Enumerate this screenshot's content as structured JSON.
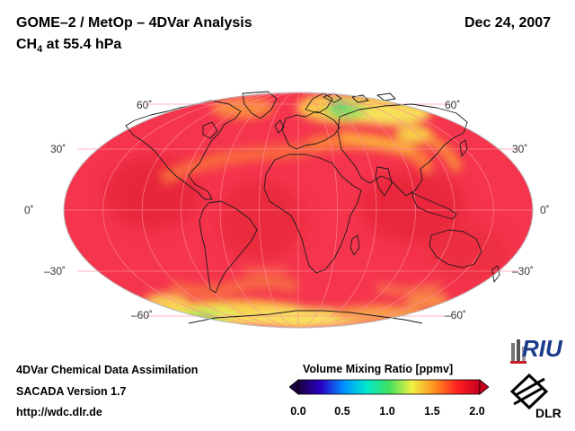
{
  "header": {
    "title": "GOME–2 / MetOp – 4DVar Analysis",
    "date": "Dec 24, 2007",
    "species_main": "CH",
    "species_sub": "4",
    "species_rest": " at 55.4 hPa"
  },
  "map": {
    "projection": "mollweide",
    "field_colors": {
      "background": "#f5354d",
      "high": "#ec2a3c",
      "orange": "#f86a3a",
      "yellow": "#f7e45a",
      "green": "#66d25a"
    },
    "lat_labels": {
      "n60_left": "60˚",
      "n60_right": "60˚",
      "n30_left": "30˚",
      "n30_right": "30˚",
      "eq_left": "0˚",
      "eq_right": "0˚",
      "s30_left": "–30˚",
      "s30_right": "–30˚",
      "s60_left": "–60˚",
      "s60_right": "–60˚"
    }
  },
  "footer": {
    "line1": "4DVar Chemical Data Assimilation",
    "line2": "SACADA Version 1.7",
    "line3": "http://wdc.dlr.de"
  },
  "colorbar": {
    "title": "Volume Mixing Ratio [ppmv]",
    "ticks": [
      "0.0",
      "0.5",
      "1.0",
      "1.5",
      "2.0"
    ],
    "range": [
      0.0,
      2.0
    ],
    "stops": [
      "#1a0040",
      "#2a00c8",
      "#0090ff",
      "#00e8d0",
      "#40e060",
      "#f0f040",
      "#ff9020",
      "#ff2020",
      "#c80020"
    ]
  },
  "logos": {
    "riu": "RIU",
    "dlr": "DLR"
  }
}
